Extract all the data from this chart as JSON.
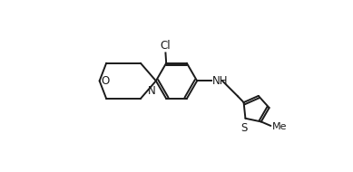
{
  "background_color": "#ffffff",
  "line_color": "#1a1a1a",
  "line_width": 1.4,
  "text_color": "#1a1a1a",
  "font_size": 8.5,
  "figsize": [
    3.89,
    1.9
  ],
  "dpi": 100,
  "xlim": [
    0,
    10
  ],
  "ylim": [
    0,
    5
  ]
}
